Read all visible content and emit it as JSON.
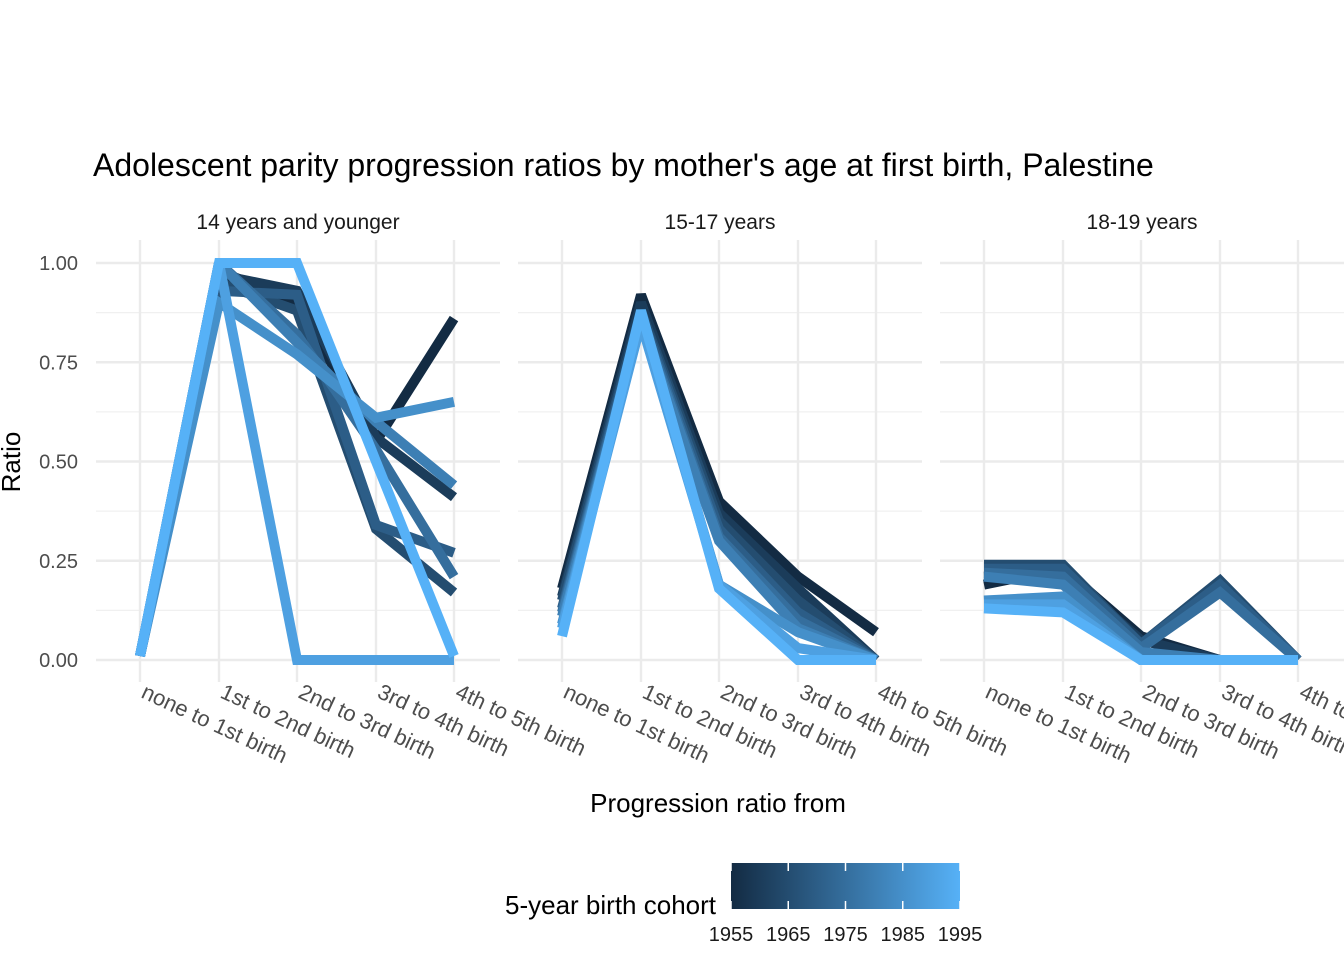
{
  "chart_data": {
    "type": "line",
    "title": "Adolescent parity progression ratios by mother's age at first birth,  Palestine",
    "xlabel": "Progression ratio from",
    "ylabel": "Ratio",
    "ylim": [
      0,
      1
    ],
    "y_ticks": [
      "0.00",
      "0.25",
      "0.50",
      "0.75",
      "1.00"
    ],
    "y_tick_values": [
      0,
      0.25,
      0.5,
      0.75,
      1.0
    ],
    "categories": [
      "none to 1st birth",
      "1st to 2nd birth",
      "2nd to 3rd birth",
      "3rd to 4th birth",
      "4th to 5th birth"
    ],
    "grid": true,
    "legend": {
      "title": "5-year birth cohort",
      "position": "bottom",
      "type": "colorbar",
      "range": [
        1955,
        1995
      ],
      "labels": [
        "1955",
        "1965",
        "1975",
        "1985",
        "1995"
      ],
      "low_color": "#132B43",
      "high_color": "#56B1F7"
    },
    "panels": [
      {
        "name": "14 years and younger",
        "series": [
          {
            "cohort": 1955,
            "values": [
              0.01,
              0.98,
              0.9,
              0.55,
              0.86
            ]
          },
          {
            "cohort": 1960,
            "values": [
              0.01,
              0.97,
              0.93,
              0.56,
              0.41
            ]
          },
          {
            "cohort": 1965,
            "values": [
              0.01,
              0.95,
              0.88,
              0.33,
              0.17
            ]
          },
          {
            "cohort": 1970,
            "values": [
              0.01,
              0.93,
              0.92,
              0.34,
              0.27
            ]
          },
          {
            "cohort": 1975,
            "values": [
              0.01,
              1.0,
              0.82,
              0.53,
              0.21
            ]
          },
          {
            "cohort": 1980,
            "values": [
              0.01,
              1.0,
              0.8,
              0.6,
              0.44
            ]
          },
          {
            "cohort": 1985,
            "values": [
              0.01,
              0.9,
              0.77,
              0.61,
              0.65
            ]
          },
          {
            "cohort": 1990,
            "values": [
              0.01,
              1.0,
              0.0,
              0.0,
              0.0
            ]
          },
          {
            "cohort": 1995,
            "values": [
              0.01,
              1.0,
              1.0,
              0.5,
              0.01
            ]
          }
        ]
      },
      {
        "name": "15-17 years",
        "series": [
          {
            "cohort": 1955,
            "values": [
              0.18,
              0.92,
              0.4,
              0.21,
              0.07
            ]
          },
          {
            "cohort": 1960,
            "values": [
              0.16,
              0.9,
              0.37,
              0.18,
              0.0
            ]
          },
          {
            "cohort": 1965,
            "values": [
              0.15,
              0.88,
              0.35,
              0.15,
              0.0
            ]
          },
          {
            "cohort": 1970,
            "values": [
              0.13,
              0.87,
              0.33,
              0.12,
              0.0
            ]
          },
          {
            "cohort": 1975,
            "values": [
              0.12,
              0.86,
              0.31,
              0.1,
              0.0
            ]
          },
          {
            "cohort": 1980,
            "values": [
              0.11,
              0.85,
              0.3,
              0.08,
              0.0
            ]
          },
          {
            "cohort": 1985,
            "values": [
              0.09,
              0.86,
              0.19,
              0.07,
              0.0
            ]
          },
          {
            "cohort": 1990,
            "values": [
              0.08,
              0.85,
              0.19,
              0.03,
              0.0
            ]
          },
          {
            "cohort": 1995,
            "values": [
              0.06,
              0.88,
              0.18,
              0.0,
              0.0
            ]
          }
        ]
      },
      {
        "name": "18-19 years",
        "series": [
          {
            "cohort": 1955,
            "values": [
              0.19,
              0.23,
              0.06,
              0.0,
              0.0
            ]
          },
          {
            "cohort": 1960,
            "values": [
              0.21,
              0.22,
              0.05,
              0.0,
              0.0
            ]
          },
          {
            "cohort": 1965,
            "values": [
              0.24,
              0.24,
              0.04,
              0.2,
              0.0
            ]
          },
          {
            "cohort": 1970,
            "values": [
              0.23,
              0.23,
              0.04,
              0.19,
              0.0
            ]
          },
          {
            "cohort": 1975,
            "values": [
              0.22,
              0.21,
              0.03,
              0.17,
              0.0
            ]
          },
          {
            "cohort": 1980,
            "values": [
              0.21,
              0.19,
              0.02,
              0.0,
              0.0
            ]
          },
          {
            "cohort": 1985,
            "values": [
              0.15,
              0.16,
              0.0,
              0.0,
              0.0
            ]
          },
          {
            "cohort": 1990,
            "values": [
              0.14,
              0.14,
              0.0,
              0.0,
              0.0
            ]
          },
          {
            "cohort": 1995,
            "values": [
              0.13,
              0.12,
              0.0,
              0.0,
              0.0
            ]
          }
        ]
      }
    ]
  }
}
